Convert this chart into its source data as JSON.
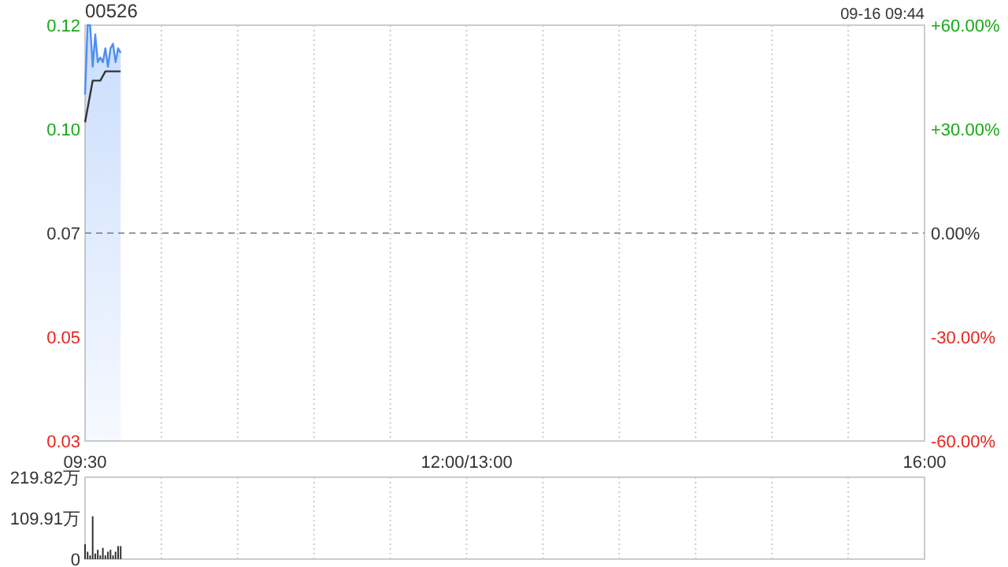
{
  "chart_data": [
    {
      "type": "line",
      "title": "00526",
      "annotations": [
        "09-16 09:44"
      ],
      "categories": [
        "09:30",
        null,
        null,
        null,
        null,
        null,
        null,
        null,
        null,
        null,
        null,
        null,
        null,
        null,
        null,
        null,
        null,
        null,
        null,
        null,
        null,
        null,
        null,
        null,
        null,
        null,
        null,
        null,
        null,
        null,
        null,
        null,
        null,
        null,
        null,
        null,
        null,
        null,
        null,
        null,
        null,
        null,
        null,
        null,
        null,
        null,
        null,
        null,
        null,
        null,
        null,
        null,
        null,
        null,
        null,
        null,
        null,
        null,
        null,
        null,
        null,
        null,
        null,
        null,
        null,
        null,
        null,
        null,
        null,
        null,
        null,
        null,
        null,
        null,
        null,
        null,
        null,
        null,
        null,
        null,
        null,
        null,
        null,
        null,
        null,
        null,
        null,
        null,
        null,
        null,
        null,
        null,
        null,
        null,
        null,
        null,
        null,
        null,
        null,
        null,
        null,
        null,
        null,
        null,
        null,
        null,
        null,
        null,
        null,
        null,
        null,
        null,
        null,
        null,
        null,
        null,
        null,
        null,
        null,
        null,
        null,
        null,
        null,
        null,
        null,
        null,
        null,
        null,
        null,
        null,
        null,
        null,
        null,
        null,
        null,
        null,
        null,
        null,
        null,
        null,
        null,
        null,
        null,
        null,
        null,
        null,
        null,
        null,
        null,
        null,
        "12:00/13:00",
        null,
        null,
        null,
        null,
        null,
        null,
        null,
        null,
        null,
        null,
        null,
        null,
        null,
        null,
        null,
        null,
        null,
        null,
        null,
        null,
        null,
        null,
        null,
        null,
        null,
        null,
        null,
        null,
        null,
        null,
        null,
        null,
        null,
        null,
        null,
        null,
        null,
        null,
        null,
        null,
        null,
        null,
        null,
        null,
        null,
        null,
        null,
        null,
        null,
        null,
        null,
        null,
        null,
        null,
        null,
        null,
        null,
        null,
        null,
        null,
        null,
        null,
        null,
        null,
        null,
        null,
        null,
        null,
        null,
        null,
        null,
        null,
        null,
        null,
        null,
        null,
        null,
        null,
        null,
        null,
        null,
        null,
        null,
        null,
        null,
        null,
        null,
        null,
        null,
        null,
        null,
        null,
        null,
        null,
        null,
        null,
        null,
        null,
        null,
        null,
        null,
        null,
        null,
        null,
        null,
        null,
        null,
        null,
        null,
        null,
        null,
        null,
        null,
        null,
        null,
        null,
        null,
        null,
        null,
        null,
        null,
        null,
        null,
        null,
        null,
        null,
        null,
        null,
        null,
        null,
        null,
        null,
        null,
        null,
        null,
        null,
        null,
        null,
        null,
        null,
        null,
        null,
        null,
        null,
        null,
        null,
        null,
        null,
        null,
        null,
        null,
        null,
        null,
        null,
        null,
        null,
        null,
        null,
        null,
        null,
        null,
        null,
        null,
        null,
        null,
        null,
        null,
        null,
        null,
        null,
        null,
        null,
        null,
        null,
        null,
        null,
        null,
        null,
        null,
        "16:00"
      ],
      "series": [
        {
          "type": "area",
          "color": "#4d8ef7",
          "values": [
            0.105,
            0.12,
            0.12,
            0.111,
            0.118,
            0.112,
            0.113,
            0.112,
            0.115,
            0.111,
            0.115,
            0.116,
            0.112,
            0.115,
            0.114,
            null,
            null,
            null,
            null,
            null,
            null,
            null,
            null,
            null,
            null,
            null,
            null,
            null,
            null,
            null,
            null,
            null,
            null,
            null,
            null,
            null,
            null,
            null,
            null,
            null,
            null,
            null,
            null,
            null,
            null,
            null,
            null,
            null,
            null,
            null,
            null,
            null,
            null,
            null,
            null,
            null,
            null,
            null,
            null,
            null,
            null,
            null,
            null,
            null,
            null,
            null,
            null,
            null,
            null,
            null,
            null,
            null,
            null,
            null,
            null,
            null,
            null,
            null,
            null,
            null,
            null,
            null,
            null,
            null,
            null,
            null,
            null,
            null,
            null,
            null,
            null,
            null,
            null,
            null,
            null,
            null,
            null,
            null,
            null,
            null,
            null,
            null,
            null,
            null,
            null,
            null,
            null,
            null,
            null,
            null,
            null,
            null,
            null,
            null,
            null,
            null,
            null,
            null,
            null,
            null,
            null,
            null,
            null,
            null,
            null,
            null,
            null,
            null,
            null,
            null,
            null,
            null,
            null,
            null,
            null,
            null,
            null,
            null,
            null,
            null,
            null,
            null,
            null,
            null,
            null,
            null,
            null,
            null,
            null,
            null,
            null,
            null,
            null,
            null,
            null,
            null,
            null,
            null,
            null,
            null,
            null,
            null,
            null,
            null,
            null,
            null,
            null,
            null,
            null,
            null,
            null,
            null,
            null,
            null,
            null,
            null,
            null,
            null,
            null,
            null,
            null,
            null,
            null,
            null,
            null,
            null,
            null,
            null,
            null,
            null,
            null,
            null,
            null,
            null,
            null,
            null,
            null,
            null,
            null,
            null,
            null,
            null,
            null,
            null,
            null,
            null,
            null,
            null,
            null,
            null,
            null,
            null,
            null,
            null,
            null,
            null,
            null,
            null,
            null,
            null,
            null,
            null,
            null,
            null,
            null,
            null,
            null,
            null,
            null,
            null,
            null,
            null,
            null,
            null,
            null,
            null,
            null,
            null,
            null,
            null,
            null,
            null,
            null,
            null,
            null,
            null,
            null,
            null,
            null,
            null,
            null,
            null,
            null,
            null,
            null,
            null,
            null,
            null,
            null,
            null,
            null,
            null,
            null,
            null,
            null,
            null,
            null,
            null,
            null,
            null,
            null,
            null,
            null,
            null,
            null,
            null,
            null,
            null,
            null,
            null,
            null,
            null,
            null,
            null,
            null,
            null,
            null,
            null,
            null,
            null,
            null,
            null,
            null,
            null,
            null,
            null,
            null,
            null,
            null,
            null,
            null,
            null,
            null,
            null,
            null,
            null,
            null,
            null,
            null,
            null,
            null,
            null,
            null,
            null,
            null,
            null,
            null,
            null,
            null,
            null,
            null,
            null,
            null,
            null,
            null,
            null,
            null,
            null,
            null,
            null,
            null
          ]
        },
        {
          "color": "#333333",
          "values": [
            0.099,
            0.102,
            0.105,
            0.108,
            0.108,
            0.108,
            0.108,
            0.109,
            0.11,
            0.11,
            0.11,
            0.11,
            0.11,
            0.11,
            0.11,
            null,
            null,
            null,
            null,
            null,
            null,
            null,
            null,
            null,
            null,
            null,
            null,
            null,
            null,
            null,
            null,
            null,
            null,
            null,
            null,
            null,
            null,
            null,
            null,
            null,
            null,
            null,
            null,
            null,
            null,
            null,
            null,
            null,
            null,
            null,
            null,
            null,
            null,
            null,
            null,
            null,
            null,
            null,
            null,
            null,
            null,
            null,
            null,
            null,
            null,
            null,
            null,
            null,
            null,
            null,
            null,
            null,
            null,
            null,
            null,
            null,
            null,
            null,
            null,
            null,
            null,
            null,
            null,
            null,
            null,
            null,
            null,
            null,
            null,
            null,
            null,
            null,
            null,
            null,
            null,
            null,
            null,
            null,
            null,
            null,
            null,
            null,
            null,
            null,
            null,
            null,
            null,
            null,
            null,
            null,
            null,
            null,
            null,
            null,
            null,
            null,
            null,
            null,
            null,
            null,
            null,
            null,
            null,
            null,
            null,
            null,
            null,
            null,
            null,
            null,
            null,
            null,
            null,
            null,
            null,
            null,
            null,
            null,
            null,
            null,
            null,
            null,
            null,
            null,
            null,
            null,
            null,
            null,
            null,
            null,
            null,
            null,
            null,
            null,
            null,
            null,
            null,
            null,
            null,
            null,
            null,
            null,
            null,
            null,
            null,
            null,
            null,
            null,
            null,
            null,
            null,
            null,
            null,
            null,
            null,
            null,
            null,
            null,
            null,
            null,
            null,
            null,
            null,
            null,
            null,
            null,
            null,
            null,
            null,
            null,
            null,
            null,
            null,
            null,
            null,
            null,
            null,
            null,
            null,
            null,
            null,
            null,
            null,
            null,
            null,
            null,
            null,
            null,
            null,
            null,
            null,
            null,
            null,
            null,
            null,
            null,
            null,
            null,
            null,
            null,
            null,
            null,
            null,
            null,
            null,
            null,
            null,
            null,
            null,
            null,
            null,
            null,
            null,
            null,
            null,
            null,
            null,
            null,
            null,
            null,
            null,
            null,
            null,
            null,
            null,
            null,
            null,
            null,
            null,
            null,
            null,
            null,
            null,
            null,
            null,
            null,
            null,
            null,
            null,
            null,
            null,
            null,
            null,
            null,
            null,
            null,
            null,
            null,
            null,
            null,
            null,
            null,
            null,
            null,
            null,
            null,
            null,
            null,
            null,
            null,
            null,
            null,
            null,
            null,
            null,
            null,
            null,
            null,
            null,
            null,
            null,
            null,
            null,
            null,
            null,
            null,
            null,
            null,
            null,
            null,
            null,
            null,
            null,
            null,
            null,
            null,
            null,
            null,
            null,
            null,
            null,
            null,
            null,
            null,
            null,
            null,
            null,
            null,
            null,
            null,
            null,
            null,
            null,
            null,
            null,
            null,
            null,
            null,
            null,
            null,
            null
          ]
        }
      ],
      "ylim": [
        0.03,
        0.12
      ],
      "yticks": [
        {
          "value": 0.03,
          "label": "0.03"
        },
        {
          "value": 0.0525,
          "label": "0.05"
        },
        {
          "value": 0.075,
          "label": "0.07"
        },
        {
          "value": 0.0975,
          "label": "0.10"
        },
        {
          "value": 0.12,
          "label": "0.12"
        }
      ],
      "y2lim": [
        -60,
        60
      ],
      "y2ticks": [
        {
          "value": -60,
          "label": "-60.00%"
        },
        {
          "value": -30,
          "label": "-30.00%"
        },
        {
          "value": 0,
          "label": "0.00%"
        },
        {
          "value": 30,
          "label": "+30.00%"
        },
        {
          "value": 60,
          "label": "+60.00%"
        }
      ],
      "ref_lines": [
        {
          "axis": "y",
          "value": 0.075,
          "color": "#999999",
          "line_style": "dashed"
        }
      ],
      "grid": "x"
    },
    {
      "type": "bar",
      "categories": [
        null,
        null,
        null,
        null,
        null,
        null,
        null,
        null,
        null,
        null,
        null,
        null,
        null,
        null,
        null,
        null,
        null,
        null,
        null,
        null,
        null,
        null,
        null,
        null,
        null,
        null,
        null,
        null,
        null,
        null,
        null,
        null,
        null,
        null,
        null,
        null,
        null,
        null,
        null,
        null,
        null,
        null,
        null,
        null,
        null,
        null,
        null,
        null,
        null,
        null,
        null,
        null,
        null,
        null,
        null,
        null,
        null,
        null,
        null,
        null,
        null,
        null,
        null,
        null,
        null,
        null,
        null,
        null,
        null,
        null,
        null,
        null,
        null,
        null,
        null,
        null,
        null,
        null,
        null,
        null,
        null,
        null,
        null,
        null,
        null,
        null,
        null,
        null,
        null,
        null,
        null,
        null,
        null,
        null,
        null,
        null,
        null,
        null,
        null,
        null,
        null,
        null,
        null,
        null,
        null,
        null,
        null,
        null,
        null,
        null,
        null,
        null,
        null,
        null,
        null,
        null,
        null,
        null,
        null,
        null,
        null,
        null,
        null,
        null,
        null,
        null,
        null,
        null,
        null,
        null,
        null,
        null,
        null,
        null,
        null,
        null,
        null,
        null,
        null,
        null,
        null,
        null,
        null,
        null,
        null,
        null,
        null,
        null,
        null,
        null,
        null,
        null,
        null,
        null,
        null,
        null,
        null,
        null,
        null,
        null,
        null,
        null,
        null,
        null,
        null,
        null,
        null,
        null,
        null,
        null,
        null,
        null,
        null,
        null,
        null,
        null,
        null,
        null,
        null,
        null,
        null,
        null,
        null,
        null,
        null,
        null,
        null,
        null,
        null,
        null,
        null,
        null,
        null,
        null,
        null,
        null,
        null,
        null,
        null,
        null,
        null,
        null,
        null,
        null,
        null,
        null,
        null,
        null,
        null,
        null,
        null,
        null,
        null,
        null,
        null,
        null,
        null,
        null,
        null,
        null,
        null,
        null,
        null,
        null,
        null,
        null,
        null,
        null,
        null,
        null,
        null,
        null,
        null,
        null,
        null,
        null,
        null,
        null,
        null,
        null,
        null,
        null,
        null,
        null,
        null,
        null,
        null,
        null,
        null,
        null,
        null,
        null,
        null,
        null,
        null,
        null,
        null,
        null,
        null,
        null,
        null,
        null,
        null,
        null,
        null,
        null,
        null,
        null,
        null,
        null,
        null,
        null,
        null,
        null,
        null,
        null,
        null,
        null,
        null,
        null,
        null,
        null,
        null,
        null,
        null,
        null,
        null,
        null,
        null,
        null,
        null,
        null,
        null,
        null,
        null,
        null,
        null,
        null,
        null,
        null,
        null,
        null,
        null,
        null,
        null,
        null,
        null,
        null,
        null,
        null,
        null,
        null,
        null,
        null,
        null,
        null,
        null,
        null,
        null,
        null,
        null,
        null,
        null,
        null,
        null,
        null,
        null,
        null,
        null,
        null,
        null
      ],
      "series": [
        {
          "color": "#333333",
          "values": [
            40,
            20,
            10,
            115,
            15,
            25,
            10,
            30,
            10,
            20,
            25,
            10,
            20,
            35,
            35,
            null,
            null,
            null,
            null,
            null,
            null,
            null,
            null,
            null,
            null,
            null,
            null,
            null,
            null,
            null,
            null,
            null,
            null,
            null,
            null,
            null,
            null,
            null,
            null,
            null,
            null,
            null,
            null,
            null,
            null,
            null,
            null,
            null,
            null,
            null,
            null,
            null,
            null,
            null,
            null,
            null,
            null,
            null,
            null,
            null,
            null,
            null,
            null,
            null,
            null,
            null,
            null,
            null,
            null,
            null,
            null,
            null,
            null,
            null,
            null,
            null,
            null,
            null,
            null,
            null,
            null,
            null,
            null,
            null,
            null,
            null,
            null,
            null,
            null,
            null,
            null,
            null,
            null,
            null,
            null,
            null,
            null,
            null,
            null,
            null,
            null,
            null,
            null,
            null,
            null,
            null,
            null,
            null,
            null,
            null,
            null,
            null,
            null,
            null,
            null,
            null,
            null,
            null,
            null,
            null,
            null,
            null,
            null,
            null,
            null,
            null,
            null,
            null,
            null,
            null,
            null,
            null,
            null,
            null,
            null,
            null,
            null,
            null,
            null,
            null,
            null,
            null,
            null,
            null,
            null,
            null,
            null,
            null,
            null,
            null,
            null,
            null,
            null,
            null,
            null,
            null,
            null,
            null,
            null,
            null,
            null,
            null,
            null,
            null,
            null,
            null,
            null,
            null,
            null,
            null,
            null,
            null,
            null,
            null,
            null,
            null,
            null,
            null,
            null,
            null,
            null,
            null,
            null,
            null,
            null,
            null,
            null,
            null,
            null,
            null,
            null,
            null,
            null,
            null,
            null,
            null,
            null,
            null,
            null,
            null,
            null,
            null,
            null,
            null,
            null,
            null,
            null,
            null,
            null,
            null,
            null,
            null,
            null,
            null,
            null,
            null,
            null,
            null,
            null,
            null,
            null,
            null,
            null,
            null,
            null,
            null,
            null,
            null,
            null,
            null,
            null,
            null,
            null,
            null,
            null,
            null,
            null,
            null,
            null,
            null,
            null,
            null,
            null,
            null,
            null,
            null,
            null,
            null,
            null,
            null,
            null,
            null,
            null,
            null,
            null,
            null,
            null,
            null,
            null,
            null,
            null,
            null,
            null,
            null,
            null,
            null,
            null,
            null,
            null,
            null,
            null,
            null,
            null,
            null,
            null,
            null,
            null,
            null,
            null,
            null,
            null,
            null,
            null,
            null,
            null,
            null,
            null,
            null,
            null,
            null,
            null,
            null,
            null,
            null,
            null,
            null,
            null,
            null,
            null,
            null,
            null,
            null,
            null,
            null,
            null,
            null,
            null,
            null,
            null,
            null,
            null,
            null,
            null,
            null,
            null,
            null,
            null,
            null,
            null,
            null,
            null,
            null,
            null,
            null,
            null,
            null,
            null,
            null,
            null,
            null,
            null
          ]
        }
      ],
      "ylim": [
        0,
        219.82
      ],
      "yticks": [
        {
          "value": 0,
          "label": "0"
        },
        {
          "value": 109.91,
          "label": "109.91万"
        },
        {
          "value": 219.82,
          "label": "219.82万"
        }
      ],
      "tick_labels": "y",
      "grid": "x"
    }
  ]
}
